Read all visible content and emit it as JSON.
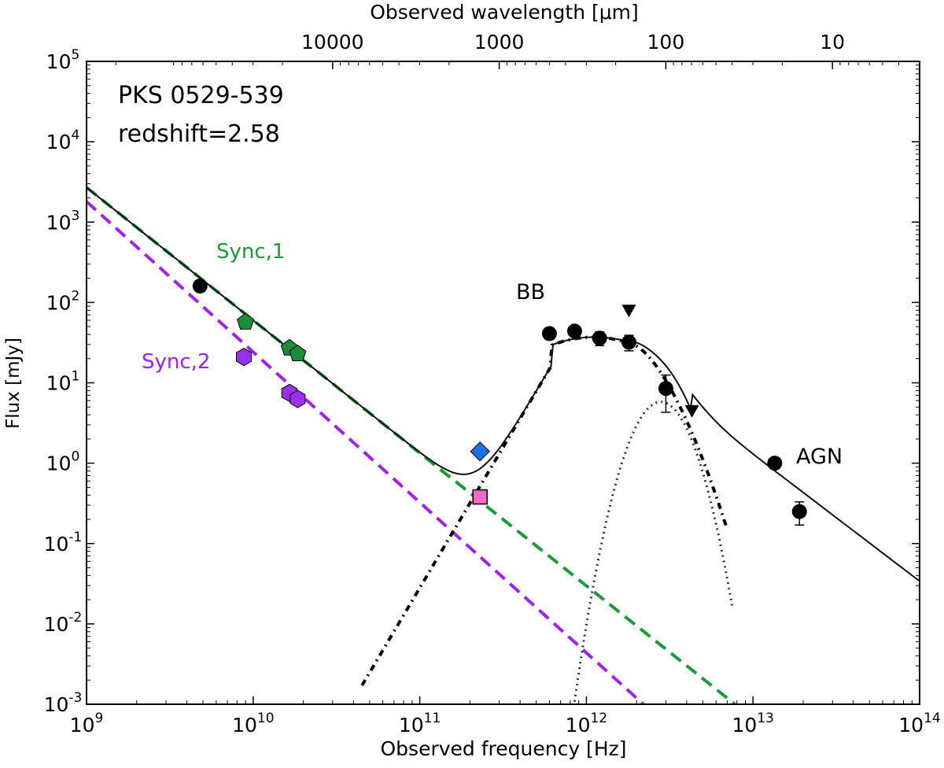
{
  "chart_data": {
    "type": "scatter",
    "title": "",
    "xlabel": "Observed frequency [Hz]",
    "ylabel": "Flux [mJy]",
    "top_xlabel": "Observed wavelength [μm]",
    "xscale": "log",
    "yscale": "log",
    "xlim": [
      1000000000.0,
      100000000000000.0
    ],
    "ylim": [
      0.001,
      100000
    ],
    "x_ticks": [
      {
        "value": 1000000000.0,
        "base": "10",
        "exp": "9"
      },
      {
        "value": 10000000000.0,
        "base": "10",
        "exp": "10"
      },
      {
        "value": 100000000000.0,
        "base": "10",
        "exp": "11"
      },
      {
        "value": 1000000000000.0,
        "base": "10",
        "exp": "12"
      },
      {
        "value": 10000000000000.0,
        "base": "10",
        "exp": "13"
      },
      {
        "value": 100000000000000.0,
        "base": "10",
        "exp": "14"
      }
    ],
    "y_ticks": [
      {
        "value": 0.001,
        "base": "10",
        "exp": "-3"
      },
      {
        "value": 0.01,
        "base": "10",
        "exp": "-2"
      },
      {
        "value": 0.1,
        "base": "10",
        "exp": "-1"
      },
      {
        "value": 1.0,
        "base": "10",
        "exp": "0"
      },
      {
        "value": 10.0,
        "base": "10",
        "exp": "1"
      },
      {
        "value": 100.0,
        "base": "10",
        "exp": "2"
      },
      {
        "value": 1000.0,
        "base": "10",
        "exp": "3"
      },
      {
        "value": 10000.0,
        "base": "10",
        "exp": "4"
      },
      {
        "value": 100000.0,
        "base": "10",
        "exp": "5"
      }
    ],
    "top_ticks": [
      {
        "label": "10000",
        "wavelength_um": 10000
      },
      {
        "label": "1000",
        "wavelength_um": 1000
      },
      {
        "label": "100",
        "wavelength_um": 100
      },
      {
        "label": "10",
        "wavelength_um": 10
      }
    ],
    "annotations": {
      "source": "PKS 0529-539",
      "redshift": "redshift=2.58",
      "sync1": "Sync,1",
      "sync2": "Sync,2",
      "bb": "BB",
      "agn": "AGN"
    },
    "colors": {
      "sync1": "#1a9a3a",
      "sync2": "#a020f0",
      "pentagon": "#1a8c3a",
      "hexagon": "#9b30f0",
      "diamond": "#1f6fe0",
      "square": "#f06ac8",
      "model": "#000000"
    },
    "series": [
      {
        "marker": "circle",
        "points": [
          {
            "x": 4800000000.0,
            "y": 160
          },
          {
            "x": 600000000000.0,
            "y": 41,
            "ylo": 35,
            "yhi": 48
          },
          {
            "x": 850000000000.0,
            "y": 44,
            "ylo": 38,
            "yhi": 51
          },
          {
            "x": 1200000000000.0,
            "y": 36,
            "ylo": 29,
            "yhi": 43
          },
          {
            "x": 1800000000000.0,
            "y": 32,
            "ylo": 25,
            "yhi": 39
          },
          {
            "x": 3000000000000.0,
            "y": 8.5,
            "ylo": 4.3,
            "yhi": 12.5
          },
          {
            "x": 13500000000000.0,
            "y": 1.0
          },
          {
            "x": 19000000000000.0,
            "y": 0.25,
            "ylo": 0.17,
            "yhi": 0.33
          }
        ]
      },
      {
        "marker": "triangle-down",
        "points": [
          {
            "x": 1800000000000.0,
            "y": 80
          },
          {
            "x": 4300000000000.0,
            "y": 4.5
          }
        ]
      },
      {
        "marker": "pentagon",
        "points": [
          {
            "x": 9000000000.0,
            "y": 57
          },
          {
            "x": 16500000000.0,
            "y": 27
          },
          {
            "x": 18500000000.0,
            "y": 23
          }
        ]
      },
      {
        "marker": "hexagon",
        "points": [
          {
            "x": 8800000000.0,
            "y": 21
          },
          {
            "x": 16500000000.0,
            "y": 7.5
          },
          {
            "x": 18500000000.0,
            "y": 6.3
          }
        ]
      },
      {
        "marker": "diamond",
        "points": [
          {
            "x": 230000000000.0,
            "y": 1.4
          }
        ]
      },
      {
        "marker": "square",
        "points": [
          {
            "x": 230000000000.0,
            "y": 0.38
          }
        ]
      }
    ],
    "model_lines": [
      {
        "id": "sync1",
        "style": "dashed",
        "from": {
          "x": 1000000000.0,
          "y": 2700
        },
        "to": {
          "x": 7800000000000.0,
          "y": 0.001
        }
      },
      {
        "id": "sync2",
        "style": "dashed",
        "from": {
          "x": 1000000000.0,
          "y": 1800
        },
        "to": {
          "x": 2200000000000.0,
          "y": 0.001
        }
      },
      {
        "id": "agn",
        "style": "solid",
        "from": {
          "x": 4300000000000.0,
          "y": 4.9
        },
        "to": {
          "x": 100000000000000.0,
          "y": 0.034
        }
      }
    ],
    "bb_component": {
      "peak_x": 1100000000000.0,
      "peak_y": 37,
      "knot_x": 250000000000.0,
      "knot_y": 1.6,
      "cutoff_slope": -9
    },
    "agn_bump": {
      "peak_x": 2800000000000.0,
      "peak_y": 5.8,
      "sigma_decades": 0.12
    }
  }
}
